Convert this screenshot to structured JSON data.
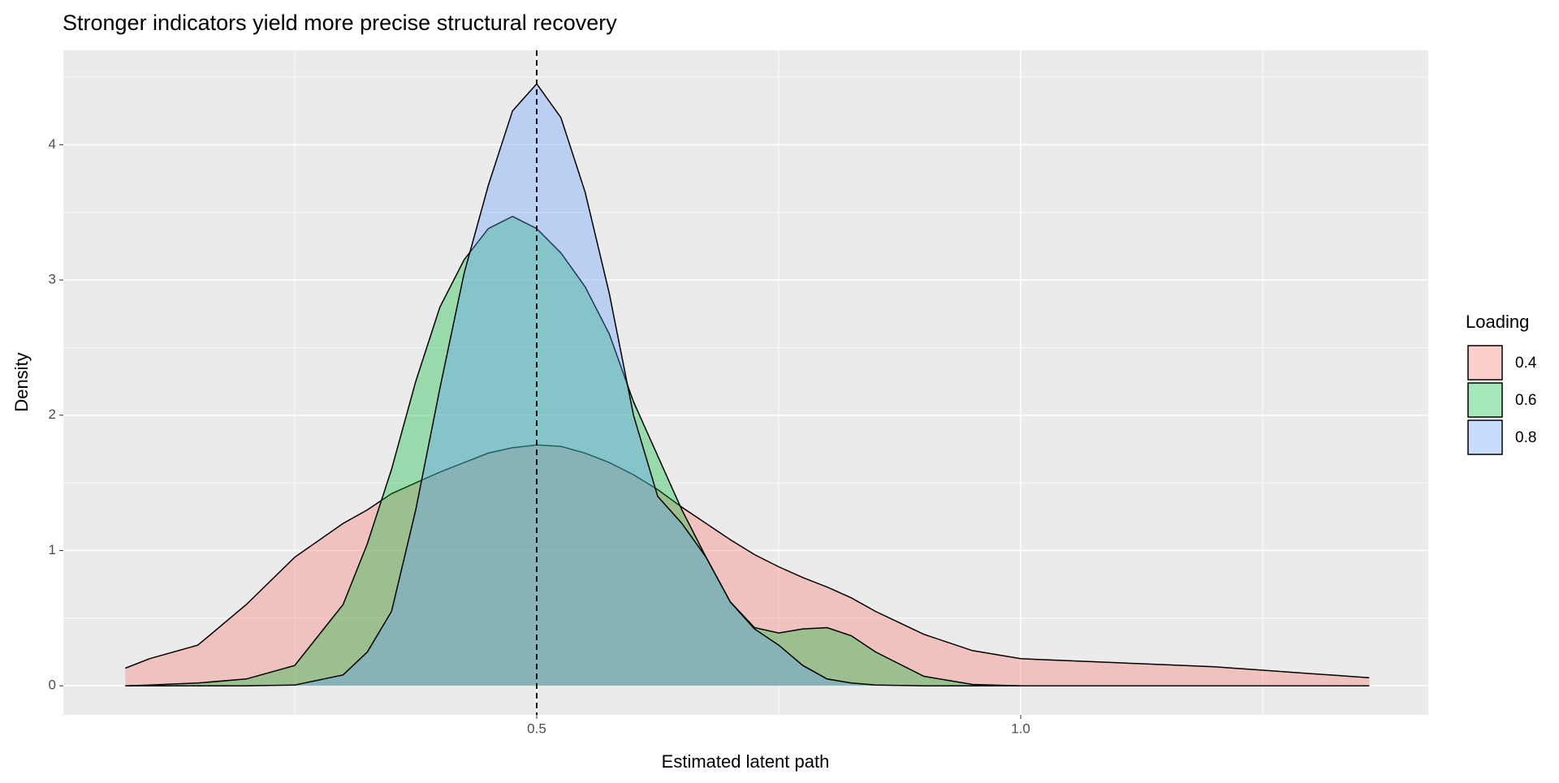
{
  "chart_data": {
    "type": "density",
    "title": "Stronger indicators yield more precise structural recovery",
    "x_label": "Estimated latent path",
    "y_label": "Density",
    "legend_title": "Loading",
    "legend_position": "right",
    "grid": true,
    "xlim": [
      0.011,
      1.421
    ],
    "ylim": [
      -0.215,
      4.698
    ],
    "xticks": [
      0.5,
      {
        "value": 1,
        "label": "1.0"
      }
    ],
    "yticks": [
      0,
      1,
      2,
      3,
      4
    ],
    "vline": 0.5,
    "x": [
      0.075,
      0.1,
      0.15,
      0.2,
      0.25,
      0.3,
      0.325,
      0.35,
      0.375,
      0.4,
      0.425,
      0.45,
      0.475,
      0.5,
      0.525,
      0.55,
      0.575,
      0.6,
      0.625,
      0.65,
      0.675,
      0.7,
      0.725,
      0.75,
      0.775,
      0.8,
      0.825,
      0.85,
      0.9,
      0.95,
      1.0,
      1.1,
      1.2,
      1.3,
      1.36
    ],
    "series": [
      {
        "name": "0.4",
        "color": "#F8766D",
        "values": [
          0.13,
          0.2,
          0.3,
          0.6,
          0.95,
          1.2,
          1.3,
          1.42,
          1.5,
          1.58,
          1.65,
          1.72,
          1.76,
          1.78,
          1.77,
          1.72,
          1.65,
          1.56,
          1.45,
          1.32,
          1.2,
          1.08,
          0.97,
          0.88,
          0.8,
          0.73,
          0.65,
          0.55,
          0.38,
          0.26,
          0.2,
          0.17,
          0.14,
          0.09,
          0.06
        ]
      },
      {
        "name": "0.6",
        "color": "#00BA38",
        "values": [
          0,
          0.005,
          0.02,
          0.05,
          0.15,
          0.6,
          1.05,
          1.6,
          2.25,
          2.8,
          3.15,
          3.38,
          3.47,
          3.38,
          3.2,
          2.95,
          2.6,
          2.1,
          1.7,
          1.3,
          0.95,
          0.62,
          0.43,
          0.39,
          0.42,
          0.43,
          0.37,
          0.25,
          0.07,
          0.01,
          0,
          0,
          0,
          0,
          0
        ]
      },
      {
        "name": "0.8",
        "color": "#619CFF",
        "values": [
          0,
          0,
          0,
          0,
          0.005,
          0.08,
          0.25,
          0.55,
          1.3,
          2.2,
          3.05,
          3.7,
          4.25,
          4.45,
          4.2,
          3.65,
          2.9,
          2.0,
          1.4,
          1.2,
          0.95,
          0.62,
          0.42,
          0.3,
          0.15,
          0.05,
          0.02,
          0.005,
          0,
          0,
          0,
          0,
          0,
          0,
          0
        ]
      }
    ]
  }
}
